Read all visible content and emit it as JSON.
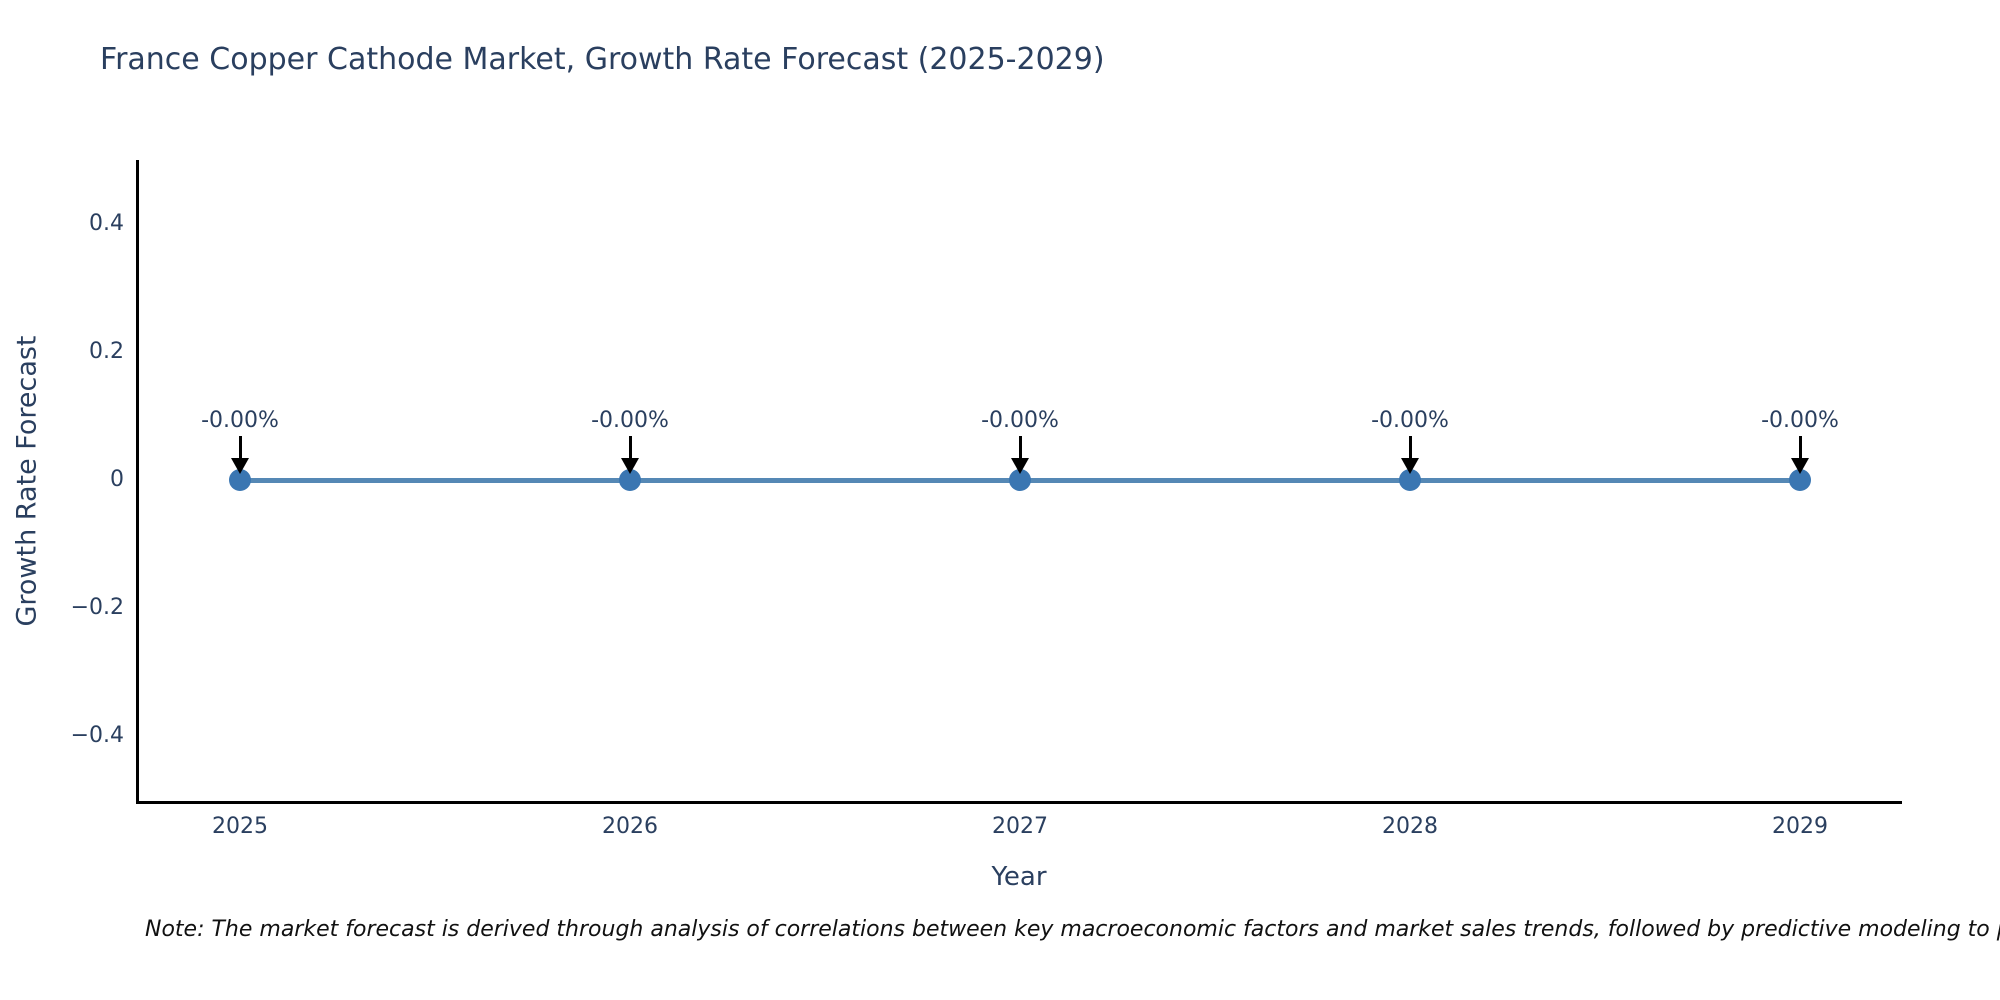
{
  "chart_data": {
    "type": "line",
    "title": "France Copper Cathode Market, Growth Rate Forecast (2025-2029)",
    "xlabel": "Year",
    "ylabel": "Growth Rate Forecast",
    "x": [
      2025,
      2026,
      2027,
      2028,
      2029
    ],
    "x_tick_labels": [
      "2025",
      "2026",
      "2027",
      "2028",
      "2029"
    ],
    "series": [
      {
        "name": "Growth Rate Forecast",
        "values": [
          0,
          0,
          0,
          0,
          0
        ]
      }
    ],
    "point_annotations": [
      "-0.00%",
      "-0.00%",
      "-0.00%",
      "-0.00%",
      "-0.00%"
    ],
    "y_tick_values": [
      0.4,
      0.2,
      0,
      -0.2,
      -0.4
    ],
    "y_tick_labels": [
      "0.4",
      "0.2",
      "0",
      "−0.2",
      "−0.4"
    ],
    "ylim": [
      -0.5,
      0.5
    ],
    "grid": false,
    "legend": "none",
    "note": "Note: The market forecast is derived through analysis of correlations between key macroeconomic factors and market sales trends, followed by predictive modeling to project future sa",
    "colors": {
      "line": "#5588b5",
      "marker": "#3a76b2",
      "arrow": "#000000",
      "axis": "#000000",
      "text": "#2a3f5f",
      "note_text": "#111111",
      "background": "#ffffff"
    }
  }
}
